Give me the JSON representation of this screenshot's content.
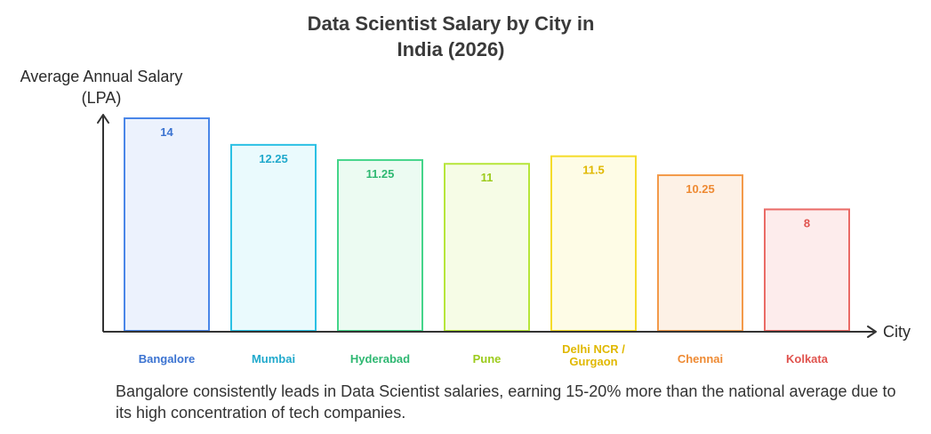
{
  "chart_data": {
    "type": "bar",
    "title": [
      "Data Scientist Salary by City in",
      "India (2026)"
    ],
    "ylabel": [
      "Average Annual Salary",
      "(LPA)"
    ],
    "xlabel": "City",
    "categories": [
      "Bangalore",
      "Mumbai",
      "Hyderabad",
      "Pune",
      "Delhi NCR / Gurgaon",
      "Chennai",
      "Kolkata"
    ],
    "category_lines": [
      [
        "Bangalore"
      ],
      [
        "Mumbai"
      ],
      [
        "Hyderabad"
      ],
      [
        "Pune"
      ],
      [
        "Delhi NCR /",
        "Gurgaon"
      ],
      [
        "Chennai"
      ],
      [
        "Kolkata"
      ]
    ],
    "values": [
      14,
      12.25,
      11.25,
      11,
      11.5,
      10.25,
      8
    ],
    "value_labels": [
      "14",
      "12.25",
      "11.25",
      "11",
      "11.5",
      "10.25",
      "8"
    ],
    "colors": [
      {
        "stroke": "#4a86e8",
        "fill": "#ecf2fd",
        "label": "#3b73d1"
      },
      {
        "stroke": "#2bc0e4",
        "fill": "#eafafd",
        "label": "#1fa9cc"
      },
      {
        "stroke": "#45d58a",
        "fill": "#ecfbf2",
        "label": "#2fb872"
      },
      {
        "stroke": "#b6e63a",
        "fill": "#f6fce6",
        "label": "#9ccb1c"
      },
      {
        "stroke": "#f5dc2a",
        "fill": "#fefce6",
        "label": "#e0b800"
      },
      {
        "stroke": "#f39a4a",
        "fill": "#fdf1e6",
        "label": "#ee8a33"
      },
      {
        "stroke": "#ea6b66",
        "fill": "#fdecec",
        "label": "#e0534e"
      }
    ],
    "ylim": [
      0,
      14
    ],
    "grid": false,
    "legend": "none"
  },
  "caption": "Bangalore consistently leads in Data Scientist salaries, earning 15-20% more than the national average due to its high concentration of tech companies."
}
